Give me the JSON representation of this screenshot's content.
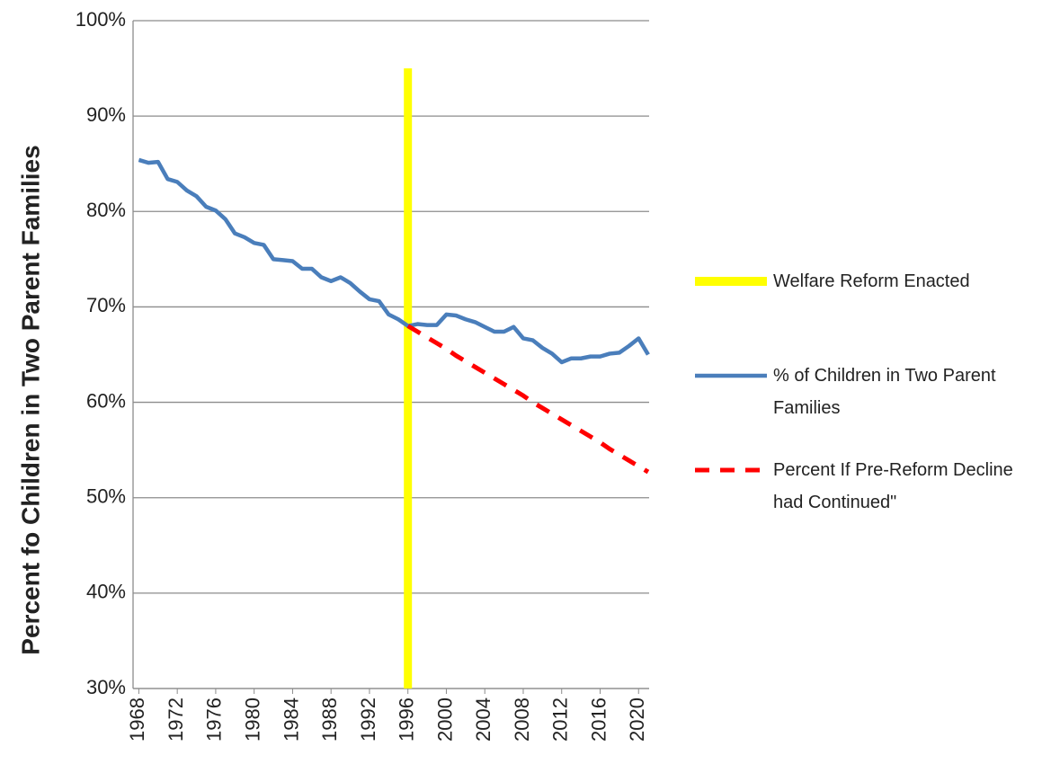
{
  "chart_data": {
    "type": "line",
    "ylabel": "Percent fo Children in Two Parent Families",
    "x": [
      1968,
      1969,
      1970,
      1971,
      1972,
      1973,
      1974,
      1975,
      1976,
      1977,
      1978,
      1979,
      1980,
      1981,
      1982,
      1983,
      1984,
      1985,
      1986,
      1987,
      1988,
      1989,
      1990,
      1991,
      1992,
      1993,
      1994,
      1995,
      1996,
      1997,
      1998,
      1999,
      2000,
      2001,
      2002,
      2003,
      2004,
      2005,
      2006,
      2007,
      2008,
      2009,
      2010,
      2011,
      2012,
      2013,
      2014,
      2015,
      2016,
      2017,
      2018,
      2019,
      2020,
      2021
    ],
    "xlim": [
      1967.4,
      2021.1
    ],
    "xticks": [
      1968,
      1972,
      1976,
      1980,
      1984,
      1988,
      1992,
      1996,
      2000,
      2004,
      2008,
      2012,
      2016,
      2020
    ],
    "ylim": [
      30,
      100
    ],
    "yticks": [
      {
        "value": 30,
        "label": "30%"
      },
      {
        "value": 40,
        "label": "40%"
      },
      {
        "value": 50,
        "label": "50%"
      },
      {
        "value": 60,
        "label": "60%"
      },
      {
        "value": 70,
        "label": "70%"
      },
      {
        "value": 80,
        "label": "80%"
      },
      {
        "value": 90,
        "label": "90%"
      },
      {
        "value": 100,
        "label": "100%"
      }
    ],
    "grid": true,
    "legend": "right",
    "reform": {
      "name": "Welfare Reform Enacted",
      "color": "#ffff00",
      "x": 1996,
      "from": 30,
      "to": 95
    },
    "series": [
      {
        "name": "% of Children in Two Parent Families",
        "color": "#4a7ebb",
        "dash": false,
        "values": [
          85.4,
          85.1,
          85.2,
          83.4,
          83.1,
          82.2,
          81.6,
          80.5,
          80.1,
          79.2,
          77.7,
          77.3,
          76.7,
          76.5,
          75.0,
          74.9,
          74.8,
          74.0,
          74.0,
          73.1,
          72.7,
          73.1,
          72.5,
          71.6,
          70.8,
          70.6,
          69.2,
          68.7,
          68.0,
          68.2,
          68.1,
          68.1,
          69.2,
          69.1,
          68.7,
          68.4,
          67.9,
          67.4,
          67.4,
          67.9,
          66.7,
          66.5,
          65.7,
          65.1,
          64.2,
          64.6,
          64.6,
          64.8,
          64.8,
          65.1,
          65.2,
          65.9,
          66.7,
          65.0
        ]
      },
      {
        "name": "Percent If Pre-Reform Decline had Continued\"",
        "color": "#ff0000",
        "dash": true,
        "values": [
          null,
          null,
          null,
          null,
          null,
          null,
          null,
          null,
          null,
          null,
          null,
          null,
          null,
          null,
          null,
          null,
          null,
          null,
          null,
          null,
          null,
          null,
          null,
          null,
          null,
          null,
          null,
          null,
          68.0,
          67.4,
          66.8,
          66.2,
          65.6,
          64.9,
          64.3,
          63.7,
          63.1,
          62.5,
          61.9,
          61.3,
          60.7,
          60.0,
          59.4,
          58.8,
          58.2,
          57.6,
          57.0,
          56.4,
          55.8,
          55.1,
          54.5,
          53.9,
          53.3,
          52.7
        ]
      }
    ]
  }
}
